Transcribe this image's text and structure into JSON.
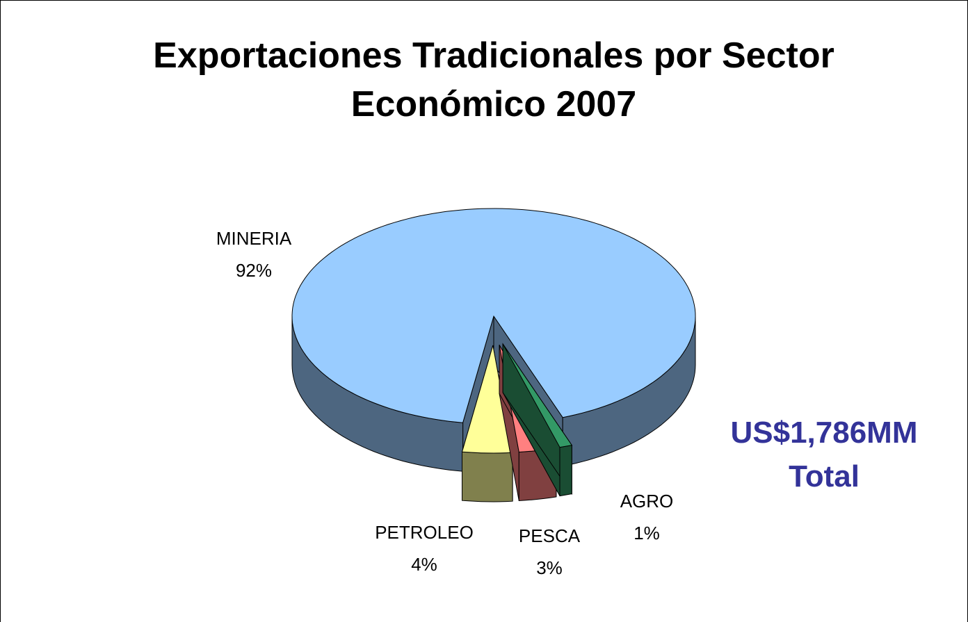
{
  "chart_data": {
    "type": "pie3d",
    "title": "Exportaciones Tradicionales por Sector Económico 2007",
    "categories": [
      "MINERIA",
      "PETROLEO",
      "PESCA",
      "AGRO"
    ],
    "values": [
      92,
      4,
      3,
      1
    ],
    "value_labels": [
      "92%",
      "4%",
      "3%",
      "1%"
    ],
    "colors": [
      "#99ccff",
      "#ffff99",
      "#ff8080",
      "#339966"
    ],
    "annotation": [
      "US$1,786MM",
      "Total"
    ]
  }
}
